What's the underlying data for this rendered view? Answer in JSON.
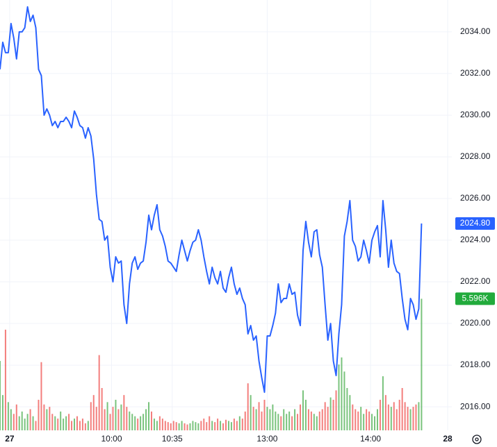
{
  "chart_data": {
    "type": "line",
    "xlim": [
      0,
      164
    ],
    "xticks": [
      {
        "value": 3.5,
        "label": "27"
      },
      {
        "value": 40.5,
        "label": "10:00"
      },
      {
        "value": 62.5,
        "label": "10:35"
      },
      {
        "value": 97,
        "label": "13:00"
      },
      {
        "value": 134.5,
        "label": "14:00"
      },
      {
        "value": 162.5,
        "label": "28"
      }
    ],
    "ylim": [
      2014.87,
      2035.53
    ],
    "yticks": [
      {
        "value": 2016,
        "label": "2016.00"
      },
      {
        "value": 2018,
        "label": "2018.00"
      },
      {
        "value": 2020,
        "label": "2020.00"
      },
      {
        "value": 2022,
        "label": "2022.00"
      },
      {
        "value": 2024,
        "label": "2024.00"
      },
      {
        "value": 2026,
        "label": "2026.00"
      },
      {
        "value": 2028,
        "label": "2028.00"
      },
      {
        "value": 2030,
        "label": "2030.00"
      },
      {
        "value": 2032,
        "label": "2032.00"
      },
      {
        "value": 2034,
        "label": "2034.00"
      }
    ],
    "y2lim": [
      0,
      18300
    ],
    "grid": true,
    "series": [
      {
        "color": "#2962ff",
        "last_label": "2024.80",
        "values": [
          2032.2,
          2033.5,
          2033.0,
          2033.0,
          2034.4,
          2033.7,
          2032.7,
          2034.0,
          2034.0,
          2034.2,
          2035.2,
          2034.5,
          2034.8,
          2034.2,
          2032.2,
          2031.9,
          2030.0,
          2030.3,
          2030.0,
          2029.5,
          2029.7,
          2029.4,
          2029.7,
          2029.7,
          2029.9,
          2029.7,
          2029.4,
          2030.2,
          2029.9,
          2029.5,
          2029.4,
          2028.9,
          2029.4,
          2029.0,
          2027.9,
          2026.2,
          2025.0,
          2024.9,
          2024.0,
          2024.2,
          2022.7,
          2022.0,
          2023.2,
          2022.9,
          2023.0,
          2020.9,
          2020.0,
          2021.9,
          2022.9,
          2023.2,
          2022.6,
          2022.9,
          2023.0,
          2023.9,
          2025.2,
          2024.5,
          2025.2,
          2025.7,
          2024.5,
          2024.2,
          2023.7,
          2023.0,
          2022.9,
          2022.7,
          2022.5,
          2023.3,
          2024.0,
          2023.5,
          2023.0,
          2023.5,
          2023.9,
          2024.0,
          2024.5,
          2024.0,
          2023.2,
          2022.5,
          2021.9,
          2022.7,
          2022.2,
          2021.9,
          2022.5,
          2021.7,
          2021.5,
          2022.2,
          2022.7,
          2021.9,
          2021.4,
          2021.7,
          2021.2,
          2020.9,
          2019.5,
          2019.9,
          2019.2,
          2019.4,
          2018.2,
          2017.4,
          2016.7,
          2019.4,
          2019.4,
          2019.9,
          2020.5,
          2021.9,
          2021.0,
          2021.2,
          2021.2,
          2021.9,
          2021.4,
          2021.5,
          2020.4,
          2019.9,
          2023.5,
          2024.9,
          2023.9,
          2023.2,
          2024.4,
          2024.5,
          2023.3,
          2022.7,
          2020.9,
          2019.2,
          2020.0,
          2018.2,
          2017.5,
          2019.5,
          2020.9,
          2024.2,
          2024.9,
          2025.9,
          2024.0,
          2023.7,
          2023.0,
          2023.2,
          2024.0,
          2023.5,
          2022.9,
          2024.0,
          2024.4,
          2024.7,
          2023.2,
          2025.9,
          2024.5,
          2022.7,
          2024.0,
          2022.9,
          2022.5,
          2022.4,
          2021.2,
          2020.2,
          2019.7,
          2021.2,
          2020.9,
          2020.2,
          2020.7,
          2024.8
        ]
      },
      {
        "type": "bar",
        "axis": "y2",
        "color": "#4caf50",
        "down_color": "#ef5350",
        "last_label": "5.596K",
        "values": [
          2950,
          1500,
          4280,
          1200,
          900,
          700,
          1100,
          600,
          800,
          500,
          700,
          900,
          600,
          400,
          1300,
          2900,
          1100,
          900,
          1000,
          700,
          600,
          500,
          800,
          500,
          600,
          700,
          400,
          500,
          600,
          400,
          500,
          300,
          400,
          1200,
          1500,
          1000,
          3200,
          1800,
          900,
          1200,
          700,
          1000,
          1300,
          900,
          1100,
          1500,
          1000,
          800,
          700,
          600,
          500,
          600,
          700,
          900,
          1200,
          800,
          500,
          400,
          600,
          500,
          400,
          350,
          300,
          400,
          350,
          300,
          400,
          300,
          250,
          300,
          400,
          350,
          300,
          400,
          500,
          350,
          600,
          400,
          350,
          500,
          400,
          300,
          450,
          400,
          350,
          500,
          400,
          600,
          500,
          800,
          2000,
          1500,
          1000,
          900,
          1200,
          800,
          1300,
          1000,
          900,
          1100,
          800,
          700,
          600,
          900,
          700,
          800,
          600,
          900,
          700,
          1100,
          1700,
          1300,
          900,
          800,
          700,
          600,
          800,
          900,
          1200,
          1000,
          1400,
          1300,
          1700,
          2800,
          3100,
          2500,
          1800,
          1500,
          1100,
          900,
          800,
          1000,
          700,
          900,
          800,
          700,
          600,
          900,
          1300,
          2300,
          1500,
          1100,
          1000,
          1200,
          900,
          1300,
          1800,
          1200,
          1000,
          900,
          1000,
          1100,
          1200,
          5596
        ]
      }
    ]
  }
}
